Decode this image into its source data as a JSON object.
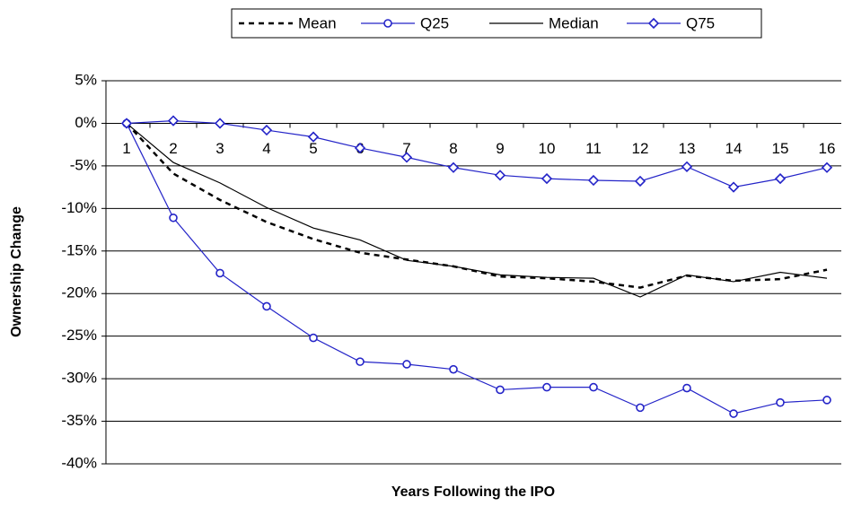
{
  "chart_data": {
    "type": "line",
    "x_label": "Years Following the IPO",
    "y_label": "Ownership Change",
    "categories": [
      "1",
      "2",
      "3",
      "4",
      "5",
      "6",
      "7",
      "8",
      "9",
      "10",
      "11",
      "12",
      "13",
      "14",
      "15",
      "16"
    ],
    "ylim": [
      -40,
      5
    ],
    "yticks": [
      {
        "value": 5,
        "label": "5%"
      },
      {
        "value": 0,
        "label": "0%"
      },
      {
        "value": -5,
        "label": "-5%"
      },
      {
        "value": -10,
        "label": "-10%"
      },
      {
        "value": -15,
        "label": "-15%"
      },
      {
        "value": -20,
        "label": "-20%"
      },
      {
        "value": -25,
        "label": "-25%"
      },
      {
        "value": -30,
        "label": "-30%"
      },
      {
        "value": -35,
        "label": "-35%"
      },
      {
        "value": -40,
        "label": "-40%"
      }
    ],
    "grid": true,
    "legend": "top",
    "series": [
      {
        "name": "Mean",
        "color": "#000000",
        "dash": "dashed",
        "marker": "none",
        "values": [
          0,
          -5.9,
          -9.0,
          -11.6,
          -13.6,
          -15.2,
          -16.0,
          -16.8,
          -18.0,
          -18.2,
          -18.6,
          -19.3,
          -17.9,
          -18.5,
          -18.3,
          -17.2
        ]
      },
      {
        "name": "Q25",
        "color": "#2424c8",
        "dash": "solid",
        "marker": "circle",
        "values": [
          0,
          -11.1,
          -17.6,
          -21.5,
          -25.2,
          -28.0,
          -28.3,
          -28.9,
          -31.3,
          -31.0,
          -31.0,
          -33.4,
          -31.1,
          -34.1,
          -32.8,
          -32.5
        ]
      },
      {
        "name": "Median",
        "color": "#000000",
        "dash": "solid",
        "marker": "none",
        "values": [
          0,
          -4.6,
          -7.0,
          -9.9,
          -12.3,
          -13.7,
          -16.1,
          -16.8,
          -17.8,
          -18.1,
          -18.2,
          -20.4,
          -17.8,
          -18.6,
          -17.5,
          -18.2
        ]
      },
      {
        "name": "Q75",
        "color": "#2424c8",
        "dash": "solid",
        "marker": "diamond",
        "values": [
          0,
          0.3,
          0.0,
          -0.8,
          -1.6,
          -2.9,
          -4.0,
          -5.2,
          -6.1,
          -6.5,
          -6.7,
          -6.8,
          -5.1,
          -7.5,
          -6.5,
          -5.2
        ]
      }
    ]
  }
}
